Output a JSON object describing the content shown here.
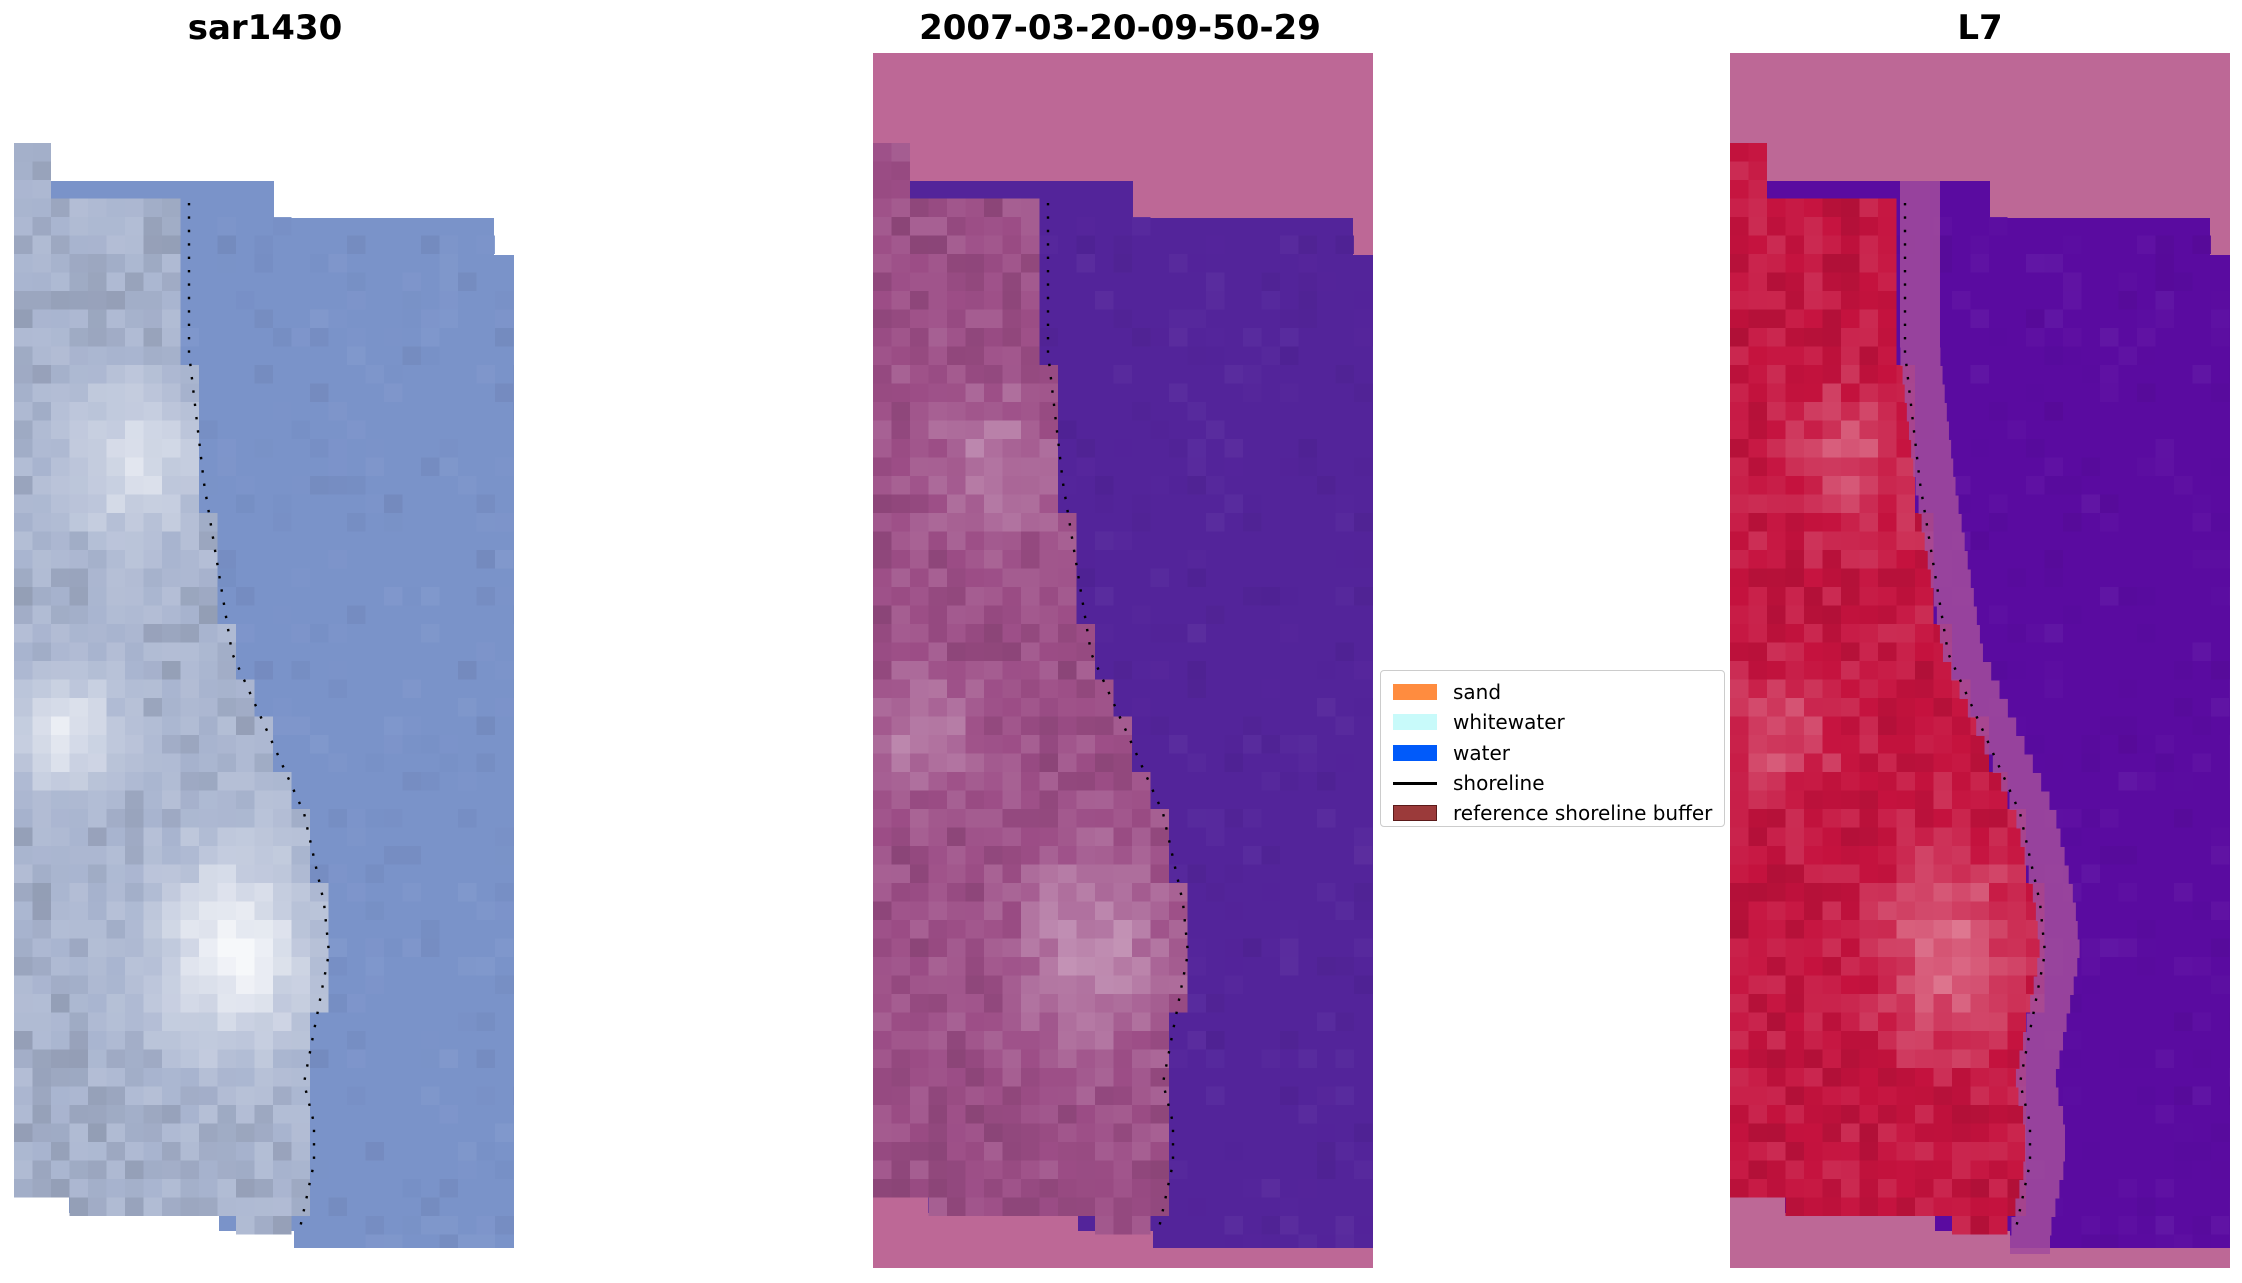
{
  "panels": [
    {
      "title": "sar1430",
      "image": "RGB satellite image",
      "colors": {
        "land": "#a8b4cf",
        "sea": "#7a93c9",
        "bright": "#f0eef6"
      }
    },
    {
      "title": "2007-03-20-09-50-29",
      "image": "classified image overlay",
      "colors": {
        "land": "#9c4d86",
        "sea": "#53249a",
        "border": "#bd6896"
      }
    },
    {
      "title": "L7",
      "image": "MNDWI image",
      "colors": {
        "land": "#c5123e",
        "sea": "#5a0ba0",
        "border": "#bd6896"
      }
    }
  ],
  "legend": {
    "items": [
      {
        "label": "sand",
        "color": "#ff8c3f"
      },
      {
        "label": "whitewater",
        "color": "#c8fafa"
      },
      {
        "label": "water",
        "color": "#005afa"
      },
      {
        "label": "shoreline",
        "color": "#000000"
      },
      {
        "label": "reference shoreline buffer",
        "color": "#9b3a3a"
      }
    ]
  }
}
